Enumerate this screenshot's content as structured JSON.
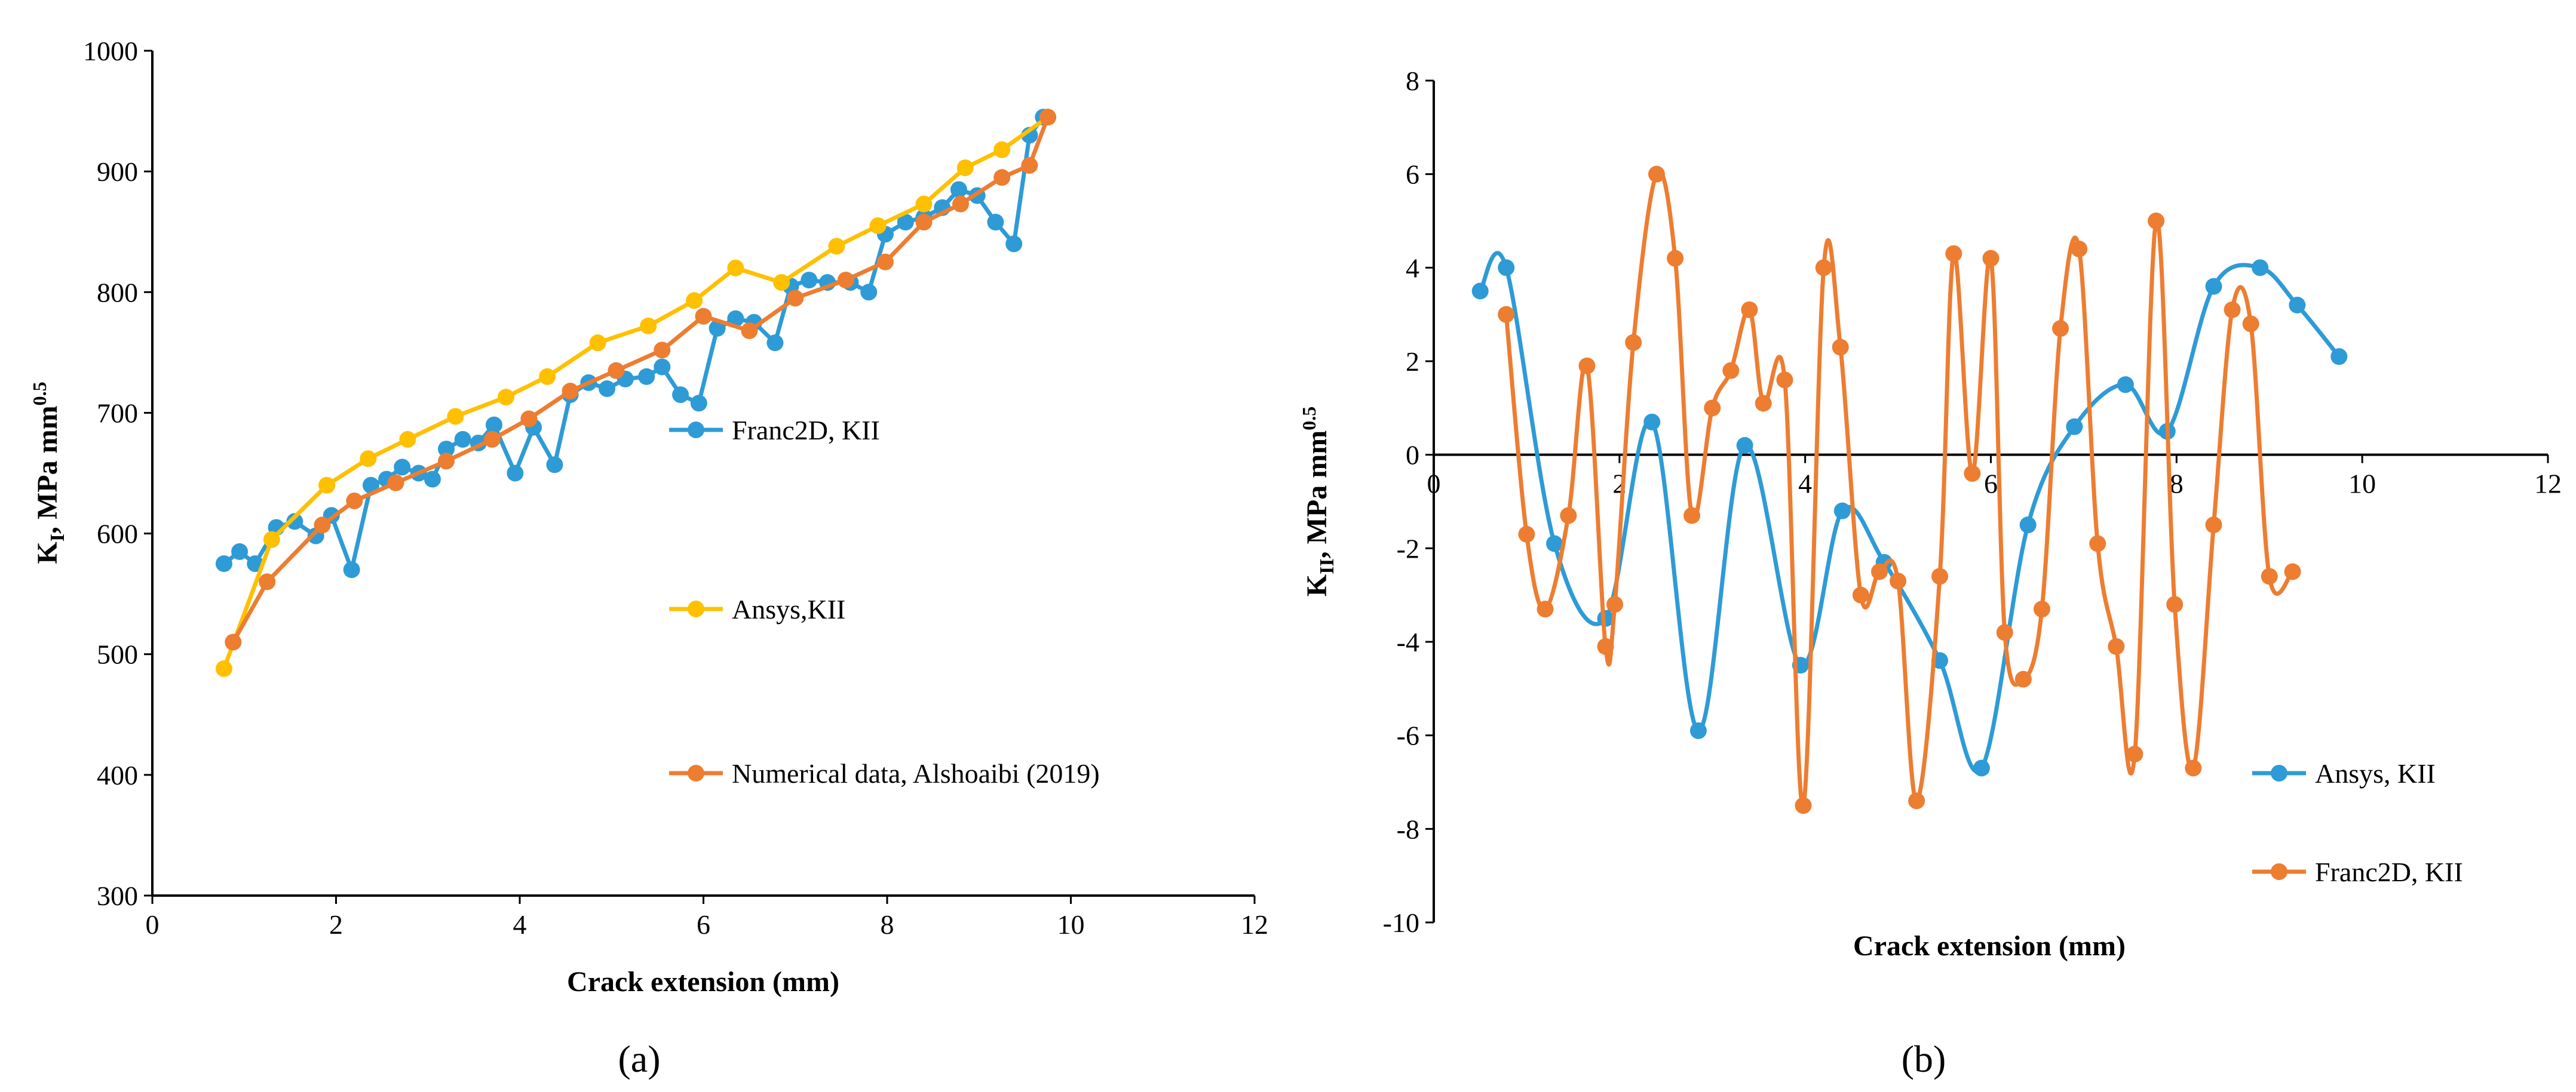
{
  "chart_data": [
    {
      "type": "line",
      "panel_label": "(a)",
      "xlabel": "Crack extension (mm)",
      "ylabel": "K",
      "ylabel_sub": "I",
      "ylabel_unit": ", MPa mm",
      "ylabel_sup": "0.5",
      "xlim": [
        0,
        12
      ],
      "ylim": [
        300,
        1000
      ],
      "xticks": [
        "0",
        "2",
        "4",
        "6",
        "8",
        "10",
        "12"
      ],
      "yticks": [
        "300",
        "400",
        "500",
        "600",
        "700",
        "800",
        "900",
        "1000"
      ],
      "series": [
        {
          "name": "Franc2D, KII",
          "color": "#2E9BD6",
          "x": [
            0.78,
            0.95,
            1.12,
            1.35,
            1.55,
            1.78,
            1.95,
            2.17,
            2.38,
            2.55,
            2.72,
            2.9,
            3.05,
            3.2,
            3.38,
            3.55,
            3.72,
            3.95,
            4.15,
            4.38,
            4.55,
            4.75,
            4.95,
            5.15,
            5.38,
            5.55,
            5.75,
            5.95,
            6.15,
            6.35,
            6.55,
            6.78,
            6.95,
            7.15,
            7.35,
            7.6,
            7.8,
            7.98,
            8.2,
            8.4,
            8.6,
            8.78,
            8.98,
            9.18,
            9.38,
            9.55,
            9.7
          ],
          "y": [
            575,
            585,
            575,
            605,
            610,
            598,
            615,
            570,
            640,
            645,
            655,
            650,
            645,
            670,
            678,
            675,
            690,
            650,
            688,
            657,
            715,
            725,
            720,
            728,
            730,
            738,
            715,
            708,
            770,
            778,
            775,
            758,
            805,
            810,
            808,
            808,
            800,
            848,
            858,
            862,
            870,
            885,
            880,
            858,
            840,
            930,
            945
          ]
        },
        {
          "name": "Ansys,KII",
          "color": "#FFC000",
          "x": [
            0.78,
            1.3,
            1.9,
            2.35,
            2.78,
            3.3,
            3.85,
            4.3,
            4.85,
            5.4,
            5.9,
            6.35,
            6.85,
            7.45,
            7.9,
            8.4,
            8.85,
            9.25,
            9.75
          ],
          "y": [
            488,
            595,
            640,
            662,
            678,
            697,
            713,
            730,
            758,
            772,
            793,
            820,
            808,
            838,
            855,
            873,
            903,
            918,
            945
          ]
        },
        {
          "name": "Numerical data, Alshoaibi (2019)",
          "color": "#ED7D31",
          "x": [
            0.88,
            1.25,
            1.85,
            2.2,
            2.65,
            3.2,
            3.7,
            4.1,
            4.55,
            5.05,
            5.55,
            6.0,
            6.5,
            7.0,
            7.55,
            7.98,
            8.4,
            8.8,
            9.25,
            9.55,
            9.75
          ],
          "y": [
            510,
            560,
            607,
            627,
            642,
            660,
            678,
            695,
            718,
            735,
            752,
            780,
            768,
            795,
            810,
            825,
            858,
            873,
            895,
            905,
            945
          ]
        }
      ]
    },
    {
      "type": "line",
      "panel_label": "(b)",
      "xlabel": "Crack extension (mm)",
      "ylabel": "K",
      "ylabel_sub": "II",
      "ylabel_unit": ", MPa mm",
      "ylabel_sup": "0.5",
      "xlim": [
        0,
        12
      ],
      "ylim": [
        -10,
        8
      ],
      "xticks": [
        "0",
        "2",
        "4",
        "6",
        "8",
        "10",
        "12"
      ],
      "yticks": [
        "-10",
        "-8",
        "-6",
        "-4",
        "-2",
        "0",
        "2",
        "4",
        "6",
        "8"
      ],
      "series": [
        {
          "name": "Ansys, KII",
          "color": "#2E9BD6",
          "x": [
            0.5,
            0.78,
            1.3,
            1.85,
            2.35,
            2.85,
            3.35,
            3.95,
            4.4,
            4.85,
            5.45,
            5.9,
            6.4,
            6.9,
            7.45,
            7.9,
            8.4,
            8.9,
            9.3,
            9.75
          ],
          "y": [
            3.5,
            4.0,
            -1.9,
            -3.5,
            0.7,
            -5.9,
            0.2,
            -4.5,
            -1.2,
            -2.3,
            -4.4,
            -6.7,
            -1.5,
            0.6,
            1.5,
            0.5,
            3.6,
            4.0,
            3.2,
            2.1
          ]
        },
        {
          "name": "Franc2D, KII",
          "color": "#ED7D31",
          "x": [
            0.78,
            1.0,
            1.2,
            1.45,
            1.65,
            1.85,
            1.95,
            2.15,
            2.4,
            2.6,
            2.78,
            3.0,
            3.2,
            3.4,
            3.55,
            3.78,
            3.98,
            4.2,
            4.38,
            4.6,
            4.8,
            5.0,
            5.2,
            5.45,
            5.6,
            5.8,
            6.0,
            6.15,
            6.35,
            6.55,
            6.75,
            6.95,
            7.15,
            7.35,
            7.55,
            7.78,
            7.98,
            8.18,
            8.4,
            8.6,
            8.8,
            9.0,
            9.25
          ],
          "y": [
            3.0,
            -1.7,
            -3.3,
            -1.3,
            1.9,
            -4.1,
            -3.2,
            2.4,
            6.0,
            4.2,
            -1.3,
            1.0,
            1.8,
            3.1,
            1.1,
            1.6,
            -7.5,
            4.0,
            2.3,
            -3.0,
            -2.5,
            -2.7,
            -7.4,
            -2.6,
            4.3,
            -0.4,
            4.2,
            -3.8,
            -4.8,
            -3.3,
            2.7,
            4.4,
            -1.9,
            -4.1,
            -6.4,
            5.0,
            -3.2,
            -6.7,
            -1.5,
            3.1,
            2.8,
            -2.6,
            -2.5
          ]
        }
      ]
    }
  ]
}
